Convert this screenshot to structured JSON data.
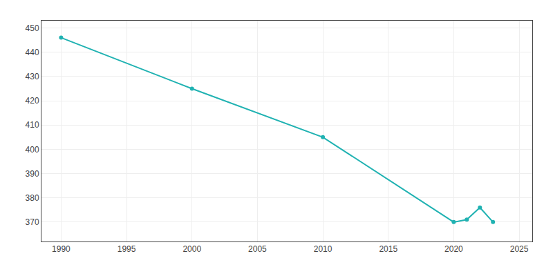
{
  "chart_data": {
    "type": "line",
    "x": [
      1990,
      2000,
      2010,
      2020,
      2021,
      2022,
      2023
    ],
    "values": [
      446,
      425,
      405,
      370,
      371,
      376,
      370
    ],
    "color": "#20b2b2",
    "marker": "circle",
    "xlim": [
      1988.5,
      2026
    ],
    "ylim": [
      362,
      453
    ],
    "xticks": [
      1990,
      1995,
      2000,
      2005,
      2010,
      2015,
      2020,
      2025
    ],
    "yticks": [
      370,
      380,
      390,
      400,
      410,
      420,
      430,
      440,
      450
    ],
    "grid": true
  }
}
